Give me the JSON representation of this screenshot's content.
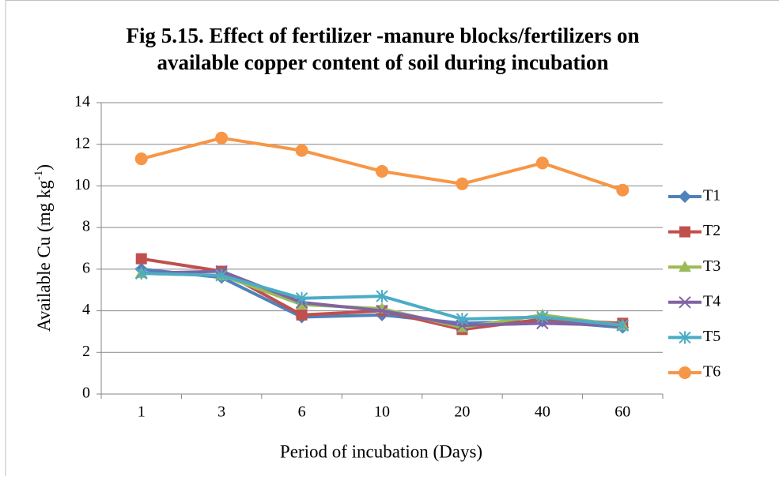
{
  "chart_data": {
    "type": "line",
    "title": [
      "Fig 5.15. Effect of fertilizer -manure blocks/fertilizers on",
      "available copper content of soil during incubation"
    ],
    "xlabel": "Period of incubation (Days)",
    "ylabel": [
      "Available Cu (mg kg",
      "-1",
      ")"
    ],
    "categories": [
      "1",
      "3",
      "6",
      "10",
      "20",
      "40",
      "60"
    ],
    "ylim": [
      0,
      14
    ],
    "yticks": [
      0,
      2,
      4,
      6,
      8,
      10,
      12,
      14
    ],
    "grid": true,
    "legend": "right",
    "series": [
      {
        "name": "T1",
        "color": "#4f81bd",
        "marker": "diamond",
        "values": [
          6.0,
          5.6,
          3.7,
          3.8,
          3.4,
          3.5,
          3.2
        ]
      },
      {
        "name": "T2",
        "color": "#c0504d",
        "marker": "square",
        "values": [
          6.5,
          5.9,
          3.8,
          4.0,
          3.1,
          3.6,
          3.4
        ]
      },
      {
        "name": "T3",
        "color": "#9bbb59",
        "marker": "triangle",
        "values": [
          5.8,
          5.7,
          4.3,
          4.1,
          3.2,
          3.8,
          3.3
        ]
      },
      {
        "name": "T4",
        "color": "#8064a2",
        "marker": "x",
        "values": [
          5.8,
          5.9,
          4.4,
          4.0,
          3.3,
          3.4,
          3.3
        ]
      },
      {
        "name": "T5",
        "color": "#4bacc6",
        "marker": "star",
        "values": [
          5.8,
          5.7,
          4.6,
          4.7,
          3.6,
          3.7,
          3.3
        ]
      },
      {
        "name": "T6",
        "color": "#f79646",
        "marker": "circle",
        "values": [
          11.3,
          12.3,
          11.7,
          10.7,
          10.1,
          11.1,
          9.8
        ]
      }
    ]
  }
}
